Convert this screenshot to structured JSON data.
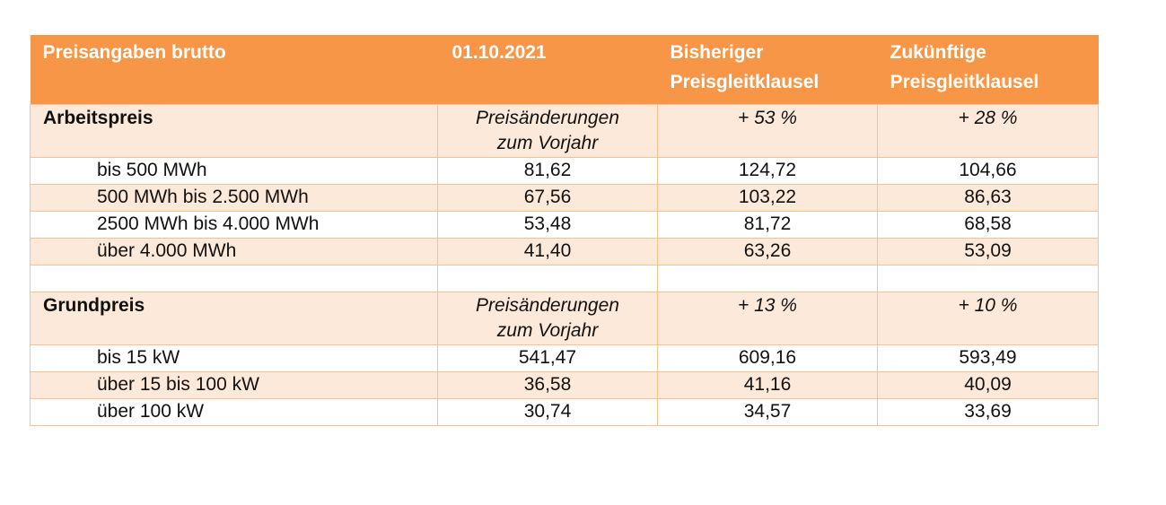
{
  "header": {
    "col1": "Preisangaben brutto",
    "col2": "01.10.2021",
    "col3_line1": "Bisheriger",
    "col3_line2": "Preisgleitklausel",
    "col4_line1": "Zukünftige",
    "col4_line2": "Preisgleitklausel"
  },
  "arbeitspreis": {
    "label": "Arbeitspreis",
    "change_line1": "Preisänderungen",
    "change_line2": "zum Vorjahr",
    "change_bisher": "+ 53 %",
    "change_zukunft": "+ 28 %",
    "rows": [
      {
        "label": "bis 500 MWh",
        "v2021": "81,62",
        "bisher": "124,72",
        "zukunft": "104,66"
      },
      {
        "label": "500 MWh bis 2.500 MWh",
        "v2021": "67,56",
        "bisher": "103,22",
        "zukunft": "86,63"
      },
      {
        "label": "2500 MWh bis 4.000 MWh",
        "v2021": "53,48",
        "bisher": "81,72",
        "zukunft": "68,58"
      },
      {
        "label": "über 4.000 MWh",
        "v2021": "41,40",
        "bisher": "63,26",
        "zukunft": "53,09"
      }
    ]
  },
  "grundpreis": {
    "label": "Grundpreis",
    "change_line1": "Preisänderungen",
    "change_line2": "zum Vorjahr",
    "change_bisher": "+ 13 %",
    "change_zukunft": "+ 10 %",
    "rows": [
      {
        "label": "bis 15 kW",
        "v2021": "541,47",
        "bisher": "609,16",
        "zukunft": "593,49"
      },
      {
        "label": "über 15 bis 100 kW",
        "v2021": "36,58",
        "bisher": "41,16",
        "zukunft": "40,09"
      },
      {
        "label": "über 100 kW",
        "v2021": "30,74",
        "bisher": "34,57",
        "zukunft": "33,69"
      }
    ]
  }
}
